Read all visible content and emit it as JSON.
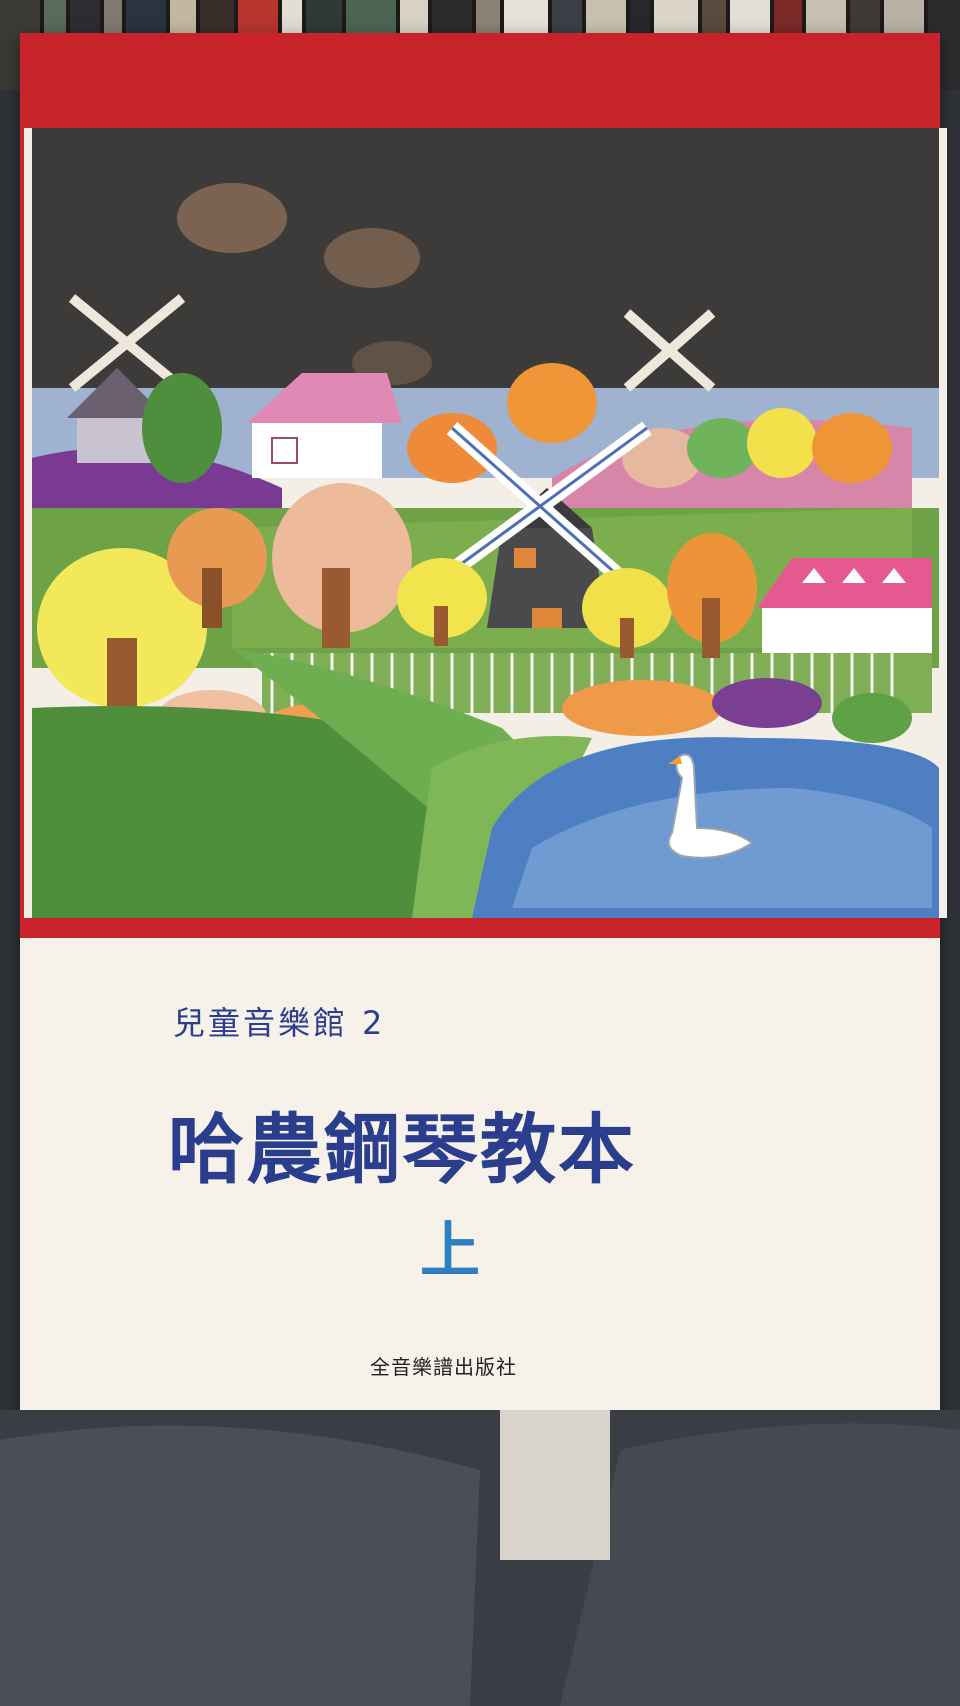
{
  "cover": {
    "series": "兒童音樂館",
    "series_number": "2",
    "title": "哈農鋼琴教本",
    "volume": "上",
    "publisher": "全音樂譜出版社"
  },
  "colors": {
    "cover_red": "#c8222a",
    "title_blue": "#2b3e8e",
    "volume_blue": "#2e7fc2"
  }
}
